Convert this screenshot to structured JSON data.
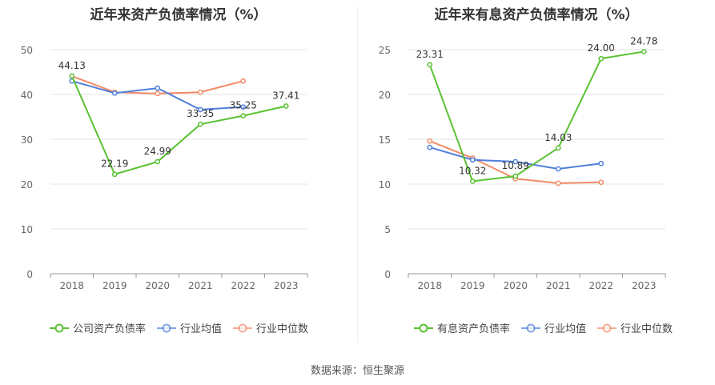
{
  "source_label": "数据来源：恒生聚源",
  "chart_data": [
    {
      "type": "line",
      "title": "近年来资产负债率情况（%）",
      "xlabel": "",
      "ylabel": "",
      "categories": [
        "2018",
        "2019",
        "2020",
        "2021",
        "2022",
        "2023"
      ],
      "ylim": [
        0,
        50
      ],
      "yticks": [
        0,
        10,
        20,
        30,
        40,
        50
      ],
      "grid": true,
      "legend": "bottom",
      "series": [
        {
          "name": "公司资产负债率",
          "color": "#5ac232",
          "values": [
            44.13,
            22.19,
            24.99,
            33.35,
            35.25,
            37.41
          ],
          "labels": [
            "44.13",
            "22.19",
            "24.99",
            "33.35",
            "35.25",
            "37.41"
          ]
        },
        {
          "name": "行业均值",
          "color": "#4f7fdc",
          "values": [
            43.0,
            40.3,
            41.4,
            36.6,
            37.2,
            null
          ]
        },
        {
          "name": "行业中位数",
          "color": "#f28b66",
          "values": [
            44.1,
            40.5,
            40.2,
            40.5,
            43.0,
            null
          ]
        }
      ]
    },
    {
      "type": "line",
      "title": "近年来有息资产负债率情况（%）",
      "xlabel": "",
      "ylabel": "",
      "categories": [
        "2018",
        "2019",
        "2020",
        "2021",
        "2022",
        "2023"
      ],
      "ylim": [
        0,
        25
      ],
      "yticks": [
        0,
        5,
        10,
        15,
        20,
        25
      ],
      "grid": true,
      "legend": "bottom",
      "series": [
        {
          "name": "有息资产负债率",
          "color": "#5ac232",
          "values": [
            23.31,
            10.32,
            10.89,
            14.03,
            24.0,
            24.78
          ],
          "labels": [
            "23.31",
            "10.32",
            "10.89",
            "14.03",
            "24.00",
            "24.78"
          ]
        },
        {
          "name": "行业均值",
          "color": "#4f7fdc",
          "values": [
            14.1,
            12.7,
            12.5,
            11.7,
            12.3,
            null
          ]
        },
        {
          "name": "行业中位数",
          "color": "#f28b66",
          "values": [
            14.8,
            12.9,
            10.6,
            10.1,
            10.2,
            null
          ]
        }
      ]
    }
  ]
}
